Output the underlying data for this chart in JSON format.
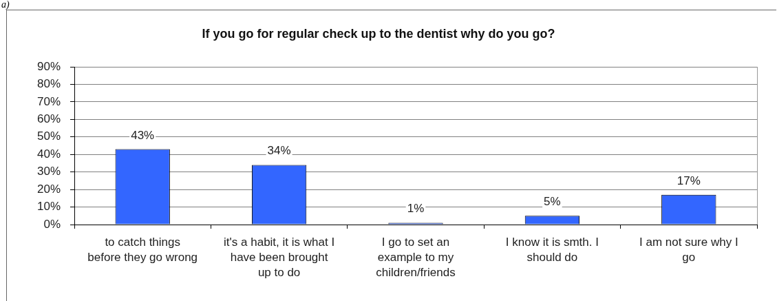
{
  "chart_data": {
    "type": "bar",
    "title": "If you go for regular check up to the dentist why do you go?",
    "categories": [
      "to catch things before they go wrong",
      "it's a habit, it is what I have been brought up to do",
      "I go to set an example to my children/friends",
      "I know it is smth. I should do",
      "I am not sure why I go"
    ],
    "values": [
      43,
      34,
      1,
      5,
      17
    ],
    "color": "#3366ff",
    "value_labels": [
      "43%",
      "34%",
      "1%",
      "5%",
      "17%"
    ],
    "ylim": [
      0,
      90
    ],
    "yticks": [
      {
        "value": 0,
        "label": "0%"
      },
      {
        "value": 10,
        "label": "10%"
      },
      {
        "value": 20,
        "label": "20%"
      },
      {
        "value": 30,
        "label": "30%"
      },
      {
        "value": 40,
        "label": "40%"
      },
      {
        "value": 50,
        "label": "50%"
      },
      {
        "value": 60,
        "label": "60%"
      },
      {
        "value": 70,
        "label": "70%"
      },
      {
        "value": 80,
        "label": "80%"
      },
      {
        "value": 90,
        "label": "90%"
      }
    ],
    "grid": "y",
    "annotations": [
      "a)"
    ]
  }
}
